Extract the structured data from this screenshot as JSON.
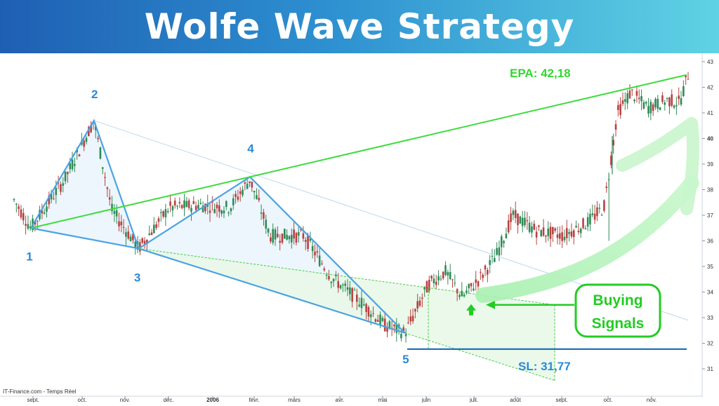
{
  "header": {
    "title": "Wolfe Wave Strategy"
  },
  "chart_data": {
    "type": "candlestick",
    "title": "Wolfe Wave Strategy",
    "source_label": "IT-Finance.com - Temps Réel",
    "ylim": [
      30.2,
      43.3
    ],
    "y_ticks": [
      "31",
      "32",
      "33",
      "34",
      "35",
      "36",
      "37",
      "38",
      "39",
      "40",
      "41",
      "42",
      "43"
    ],
    "x_ticks": [
      "sept.",
      "oct.",
      "nov.",
      "déc.",
      "2006",
      "févr.",
      "mars",
      "avr.",
      "mai",
      "juin",
      "juil.",
      "août",
      "sept.",
      "oct.",
      "nov."
    ],
    "price_path": [
      {
        "t": 0,
        "price": 37.6
      },
      {
        "t": 0.05,
        "price": 36.5
      },
      {
        "t": 0.15,
        "price": 38.4
      },
      {
        "t": 0.237,
        "price": 40.7
      },
      {
        "t": 0.29,
        "price": 37.2
      },
      {
        "t": 0.37,
        "price": 35.7
      },
      {
        "t": 0.46,
        "price": 37.3
      },
      {
        "t": 0.55,
        "price": 37.4
      },
      {
        "t": 0.64,
        "price": 37.3
      },
      {
        "t": 0.7,
        "price": 38.4
      },
      {
        "t": 0.76,
        "price": 36.2
      },
      {
        "t": 0.86,
        "price": 36.2
      },
      {
        "t": 0.94,
        "price": 34.6
      },
      {
        "t": 1.03,
        "price": 33.6
      },
      {
        "t": 1.1,
        "price": 32.7
      },
      {
        "t": 1.16,
        "price": 32.4
      },
      {
        "t": 1.23,
        "price": 34.3
      },
      {
        "t": 1.28,
        "price": 34.8
      },
      {
        "t": 1.33,
        "price": 33.8
      },
      {
        "t": 1.38,
        "price": 34.5
      },
      {
        "t": 1.43,
        "price": 35.4
      },
      {
        "t": 1.48,
        "price": 37.0
      },
      {
        "t": 1.55,
        "price": 36.4
      },
      {
        "t": 1.63,
        "price": 36.2
      },
      {
        "t": 1.7,
        "price": 36.7
      },
      {
        "t": 1.75,
        "price": 37.3
      },
      {
        "t": 1.765,
        "price": 38.6
      },
      {
        "t": 1.79,
        "price": 41.0
      },
      {
        "t": 1.83,
        "price": 41.8
      },
      {
        "t": 1.88,
        "price": 41.2
      },
      {
        "t": 1.94,
        "price": 41.5
      },
      {
        "t": 1.975,
        "price": 41.4
      },
      {
        "t": 2.0,
        "price": 42.5
      }
    ],
    "wave_points": [
      {
        "label": "1",
        "price": 36.5
      },
      {
        "label": "2",
        "price": 40.7
      },
      {
        "label": "3",
        "price": 35.7
      },
      {
        "label": "4",
        "price": 38.5
      },
      {
        "label": "5",
        "price": 32.4
      }
    ],
    "annotations": {
      "target": "EPA: 42,18",
      "stop_loss": "SL: 31,77",
      "callout": "Buying Signals",
      "target_value": 42.18,
      "stop_loss_value": 31.77
    },
    "colors": {
      "wave": "#4ba3e3",
      "target_line": "#3ddc3d",
      "signal": "#22cc22",
      "candle_up": "#2e8b57",
      "candle_down": "#b84040",
      "sl_line": "#1e73be"
    }
  }
}
